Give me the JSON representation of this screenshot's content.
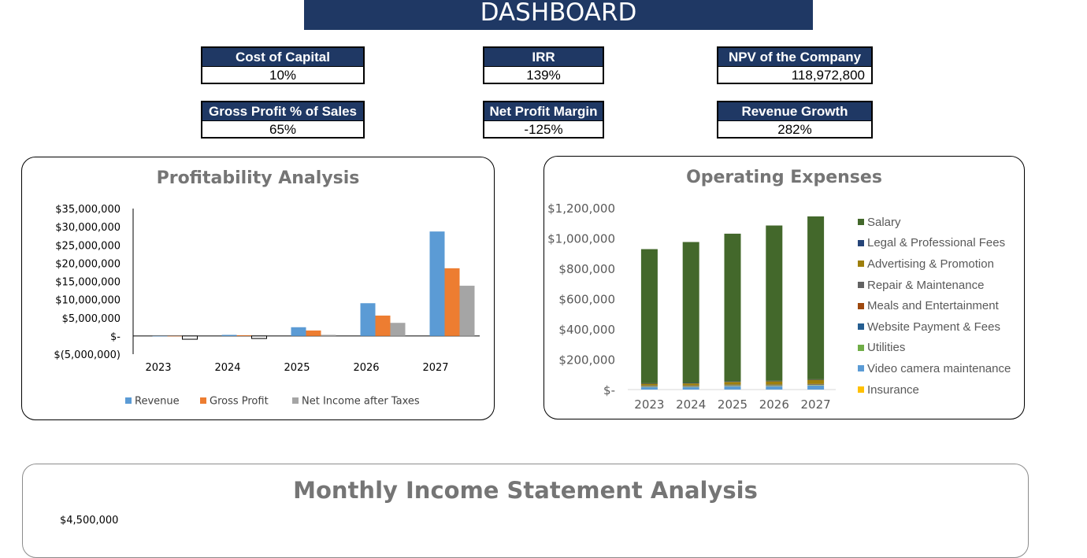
{
  "header": {
    "title": "DASHBOARD"
  },
  "kpis": [
    {
      "label": "Cost of Capital",
      "value": "10%"
    },
    {
      "label": "IRR",
      "value": "139%"
    },
    {
      "label": "NPV of the Company",
      "value": "118,972,800"
    },
    {
      "label": "Gross Profit % of Sales",
      "value": "65%"
    },
    {
      "label": "Net Profit Margin",
      "value": "-125%"
    },
    {
      "label": "Revenue Growth",
      "value": "282%"
    }
  ],
  "colors": {
    "header_bg": "#1f3864",
    "revenue": "#5b9bd5",
    "gross_profit": "#ed7d31",
    "net_income": "#a5a5a5",
    "salary": "#43682b"
  },
  "chart_data": [
    {
      "type": "bar",
      "title": "Profitability Analysis",
      "categories": [
        "2023",
        "2024",
        "2025",
        "2026",
        "2027"
      ],
      "series": [
        {
          "name": "Revenue",
          "color": "#5b9bd5",
          "values": [
            0,
            300000,
            2400000,
            9000000,
            28700000
          ]
        },
        {
          "name": "Gross Profit",
          "color": "#ed7d31",
          "values": [
            0,
            200000,
            1500000,
            5600000,
            18600000
          ]
        },
        {
          "name": "Net Income after Taxes",
          "color": "#a5a5a5",
          "values": [
            -900000,
            -700000,
            300000,
            3600000,
            13800000
          ]
        }
      ],
      "yticks": [
        "$35,000,000",
        "$30,000,000",
        "$25,000,000",
        "$20,000,000",
        "$15,000,000",
        "$10,000,000",
        "$5,000,000",
        "$-",
        "$(5,000,000)"
      ],
      "ylim": [
        -5000000,
        35000000
      ],
      "xlabel": "",
      "ylabel": "",
      "legend_position": "bottom",
      "grid": false
    },
    {
      "type": "bar",
      "stacked": true,
      "title": "Operating Expenses",
      "categories": [
        "2023",
        "2024",
        "2025",
        "2026",
        "2027"
      ],
      "series": [
        {
          "name": "Salary",
          "color": "#43682b",
          "values": [
            885000,
            930000,
            975000,
            1025000,
            1075000
          ]
        },
        {
          "name": "Legal & Professional Fees",
          "color": "#264478",
          "values": [
            3000,
            3000,
            3000,
            3000,
            3000
          ]
        },
        {
          "name": "Advertising & Promotion",
          "color": "#9e7f0c",
          "values": [
            12000,
            14000,
            18000,
            22000,
            28000
          ]
        },
        {
          "name": "Repair & Maintenance",
          "color": "#636363",
          "values": [
            3000,
            3000,
            3000,
            3000,
            3000
          ]
        },
        {
          "name": "Meals and Entertainment",
          "color": "#9e480e",
          "values": [
            1000,
            1000,
            1000,
            1000,
            1000
          ]
        },
        {
          "name": "Website Payment & Fees",
          "color": "#255e91",
          "values": [
            1000,
            1000,
            1000,
            1000,
            1000
          ]
        },
        {
          "name": "Utilities",
          "color": "#70ad47",
          "values": [
            2000,
            2000,
            2000,
            2000,
            2000
          ]
        },
        {
          "name": "Video camera maintenance",
          "color": "#5b9bd5",
          "values": [
            18000,
            18000,
            24000,
            24000,
            28000
          ]
        },
        {
          "name": "Insurance",
          "color": "#ffc000",
          "values": [
            2000,
            2000,
            2000,
            2000,
            2000
          ]
        }
      ],
      "yticks": [
        "$1,200,000",
        "$1,000,000",
        "$800,000",
        "$600,000",
        "$400,000",
        "$200,000",
        "$-"
      ],
      "ylim": [
        0,
        1200000
      ],
      "xlabel": "",
      "ylabel": "",
      "legend_position": "right",
      "grid": false
    }
  ],
  "monthly": {
    "title": "Monthly Income Statement Analysis",
    "first_ytick": "$4,500,000"
  }
}
